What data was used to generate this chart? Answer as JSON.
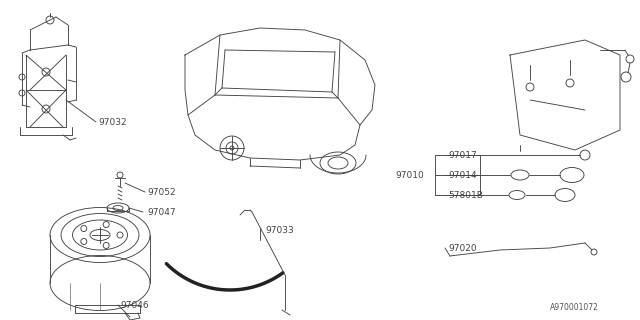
{
  "bg_color": "#ffffff",
  "line_color": "#444444",
  "text_color": "#444444",
  "diagram_id": "A970001072",
  "figsize": [
    6.4,
    3.2
  ],
  "dpi": 100
}
